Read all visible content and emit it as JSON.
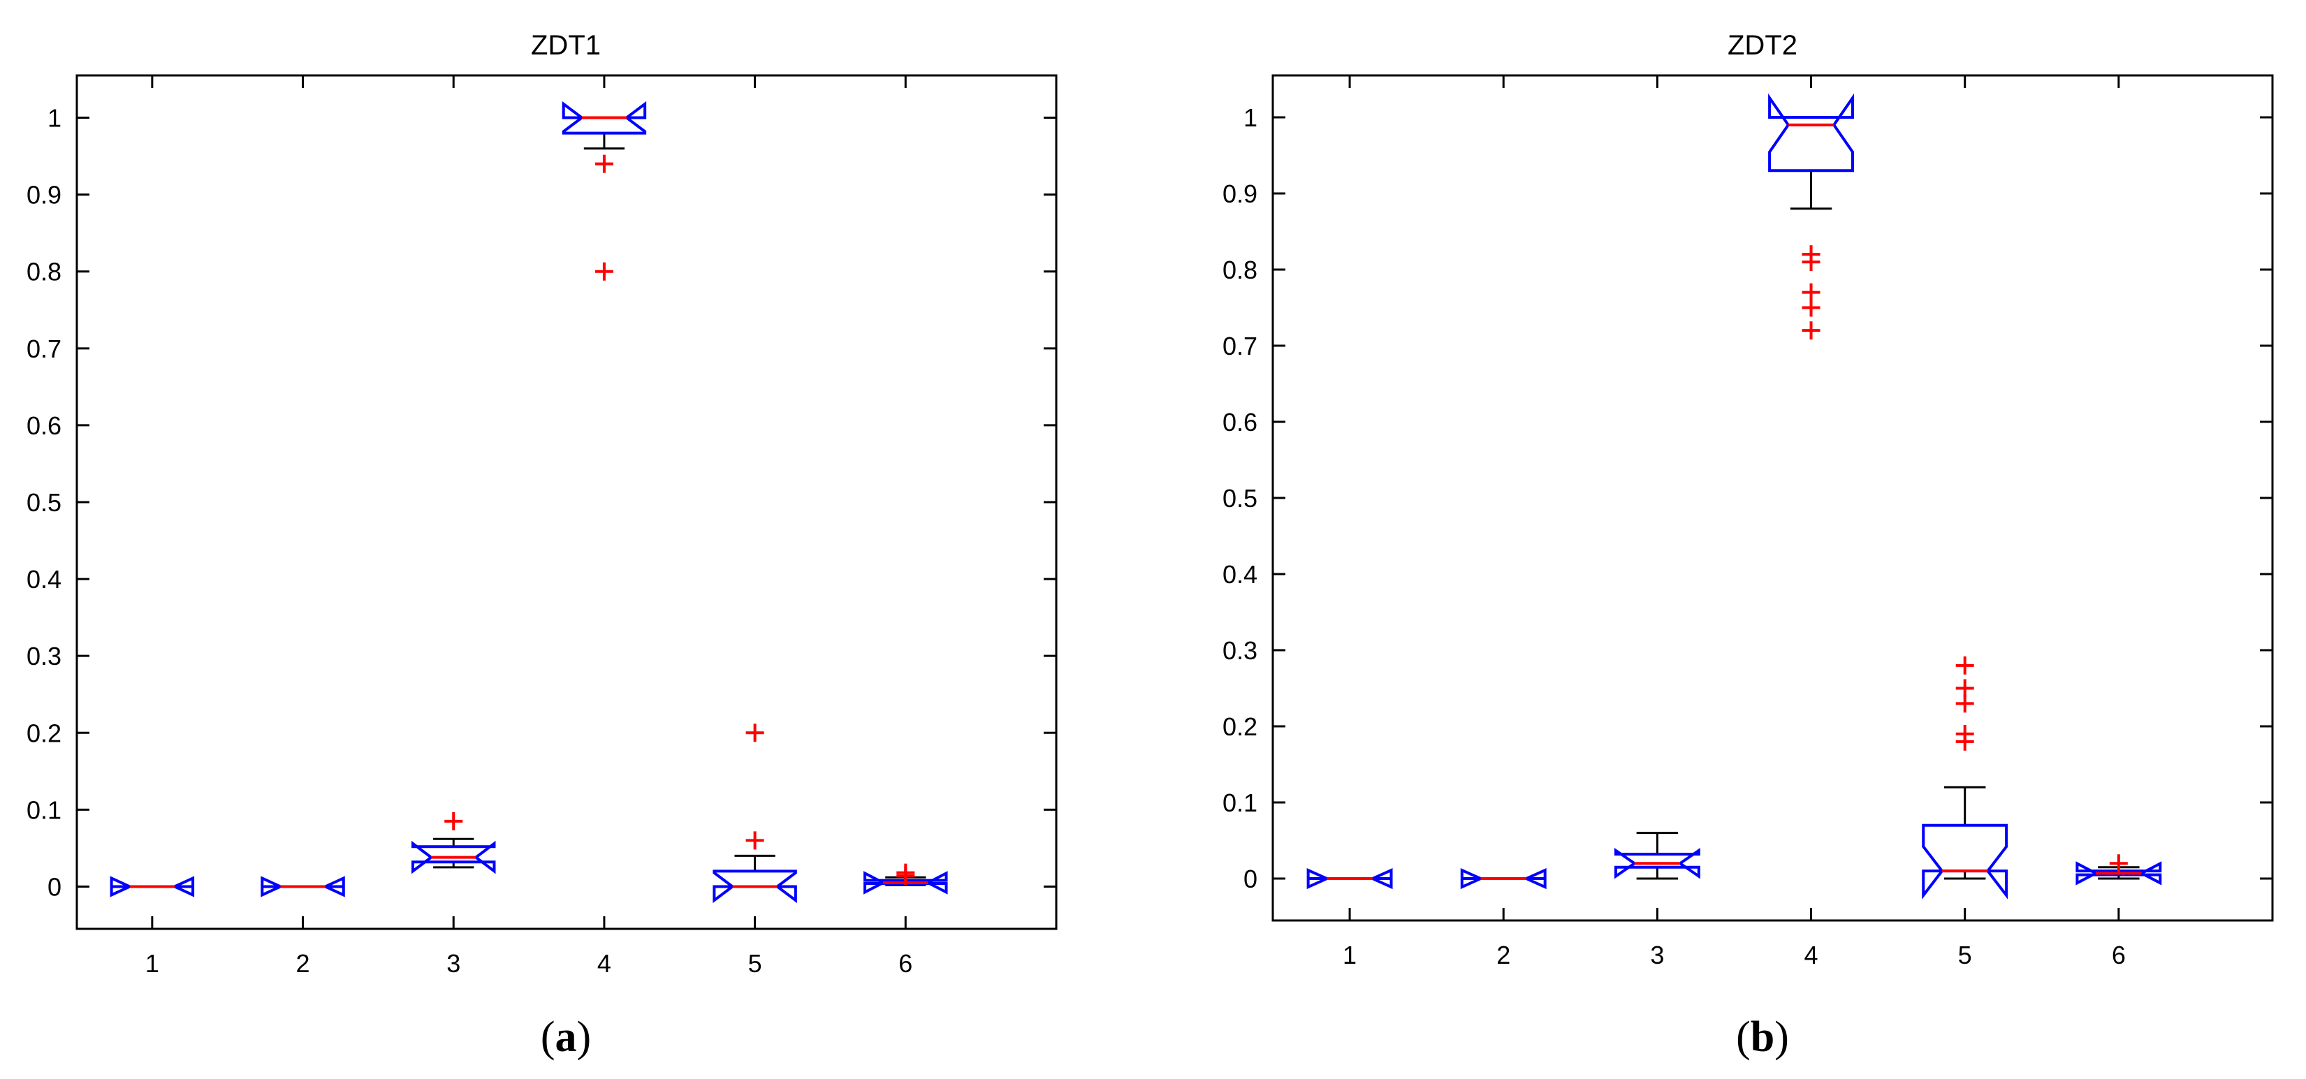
{
  "chart_data": [
    {
      "type": "box",
      "title": "ZDT1",
      "caption_letter": "a",
      "categories": [
        "1",
        "2",
        "3",
        "4",
        "5",
        "6"
      ],
      "yticks": [
        "0",
        "0.1",
        "0.2",
        "0.3",
        "0.4",
        "0.5",
        "0.6",
        "0.7",
        "0.8",
        "0.9",
        "1"
      ],
      "ylim": [
        -0.055,
        1.055
      ],
      "notched": true,
      "colors": {
        "box": "#0000ff",
        "median": "#ff0000",
        "whisker": "#000000",
        "outlier": "#ff0000"
      },
      "boxes": [
        {
          "category": "1",
          "min": 0.0,
          "q1": 0.0,
          "median": 0.0,
          "q3": 0.0,
          "max": 0.0,
          "outliers": []
        },
        {
          "category": "2",
          "min": 0.0,
          "q1": 0.0,
          "median": 0.0,
          "q3": 0.0,
          "max": 0.0,
          "outliers": []
        },
        {
          "category": "3",
          "min": 0.025,
          "q1": 0.032,
          "median": 0.038,
          "q3": 0.052,
          "max": 0.062,
          "outliers": [
            0.085
          ]
        },
        {
          "category": "4",
          "min": 0.96,
          "q1": 0.98,
          "median": 1.0,
          "q3": 1.0,
          "max": 1.0,
          "outliers": [
            0.94,
            0.8
          ]
        },
        {
          "category": "5",
          "min": 0.0,
          "q1": 0.0,
          "median": 0.0,
          "q3": 0.02,
          "max": 0.04,
          "outliers": [
            0.06,
            0.2
          ]
        },
        {
          "category": "6",
          "min": 0.002,
          "q1": 0.004,
          "median": 0.005,
          "q3": 0.008,
          "max": 0.012,
          "outliers": [
            0.014,
            0.018
          ]
        }
      ]
    },
    {
      "type": "box",
      "title": "ZDT2",
      "caption_letter": "b",
      "categories": [
        "1",
        "2",
        "3",
        "4",
        "5",
        "6"
      ],
      "yticks": [
        "0",
        "0.1",
        "0.2",
        "0.3",
        "0.4",
        "0.5",
        "0.6",
        "0.7",
        "0.8",
        "0.9",
        "1"
      ],
      "ylim": [
        -0.055,
        1.055
      ],
      "notched": true,
      "colors": {
        "box": "#0000ff",
        "median": "#ff0000",
        "whisker": "#000000",
        "outlier": "#ff0000"
      },
      "boxes": [
        {
          "category": "1",
          "min": 0.0,
          "q1": 0.0,
          "median": 0.0,
          "q3": 0.0,
          "max": 0.0,
          "outliers": []
        },
        {
          "category": "2",
          "min": 0.0,
          "q1": 0.0,
          "median": 0.0,
          "q3": 0.0,
          "max": 0.0,
          "outliers": []
        },
        {
          "category": "3",
          "min": 0.0,
          "q1": 0.015,
          "median": 0.02,
          "q3": 0.032,
          "max": 0.06,
          "outliers": []
        },
        {
          "category": "4",
          "min": 0.88,
          "q1": 0.93,
          "median": 0.99,
          "q3": 1.0,
          "max": 1.0,
          "outliers": [
            0.82,
            0.81,
            0.77,
            0.75,
            0.72
          ]
        },
        {
          "category": "5",
          "min": 0.0,
          "q1": 0.01,
          "median": 0.01,
          "q3": 0.07,
          "max": 0.12,
          "outliers": [
            0.18,
            0.19,
            0.23,
            0.25,
            0.28
          ]
        },
        {
          "category": "6",
          "min": 0.0,
          "q1": 0.005,
          "median": 0.007,
          "q3": 0.01,
          "max": 0.015,
          "outliers": [
            0.02
          ]
        }
      ]
    }
  ]
}
